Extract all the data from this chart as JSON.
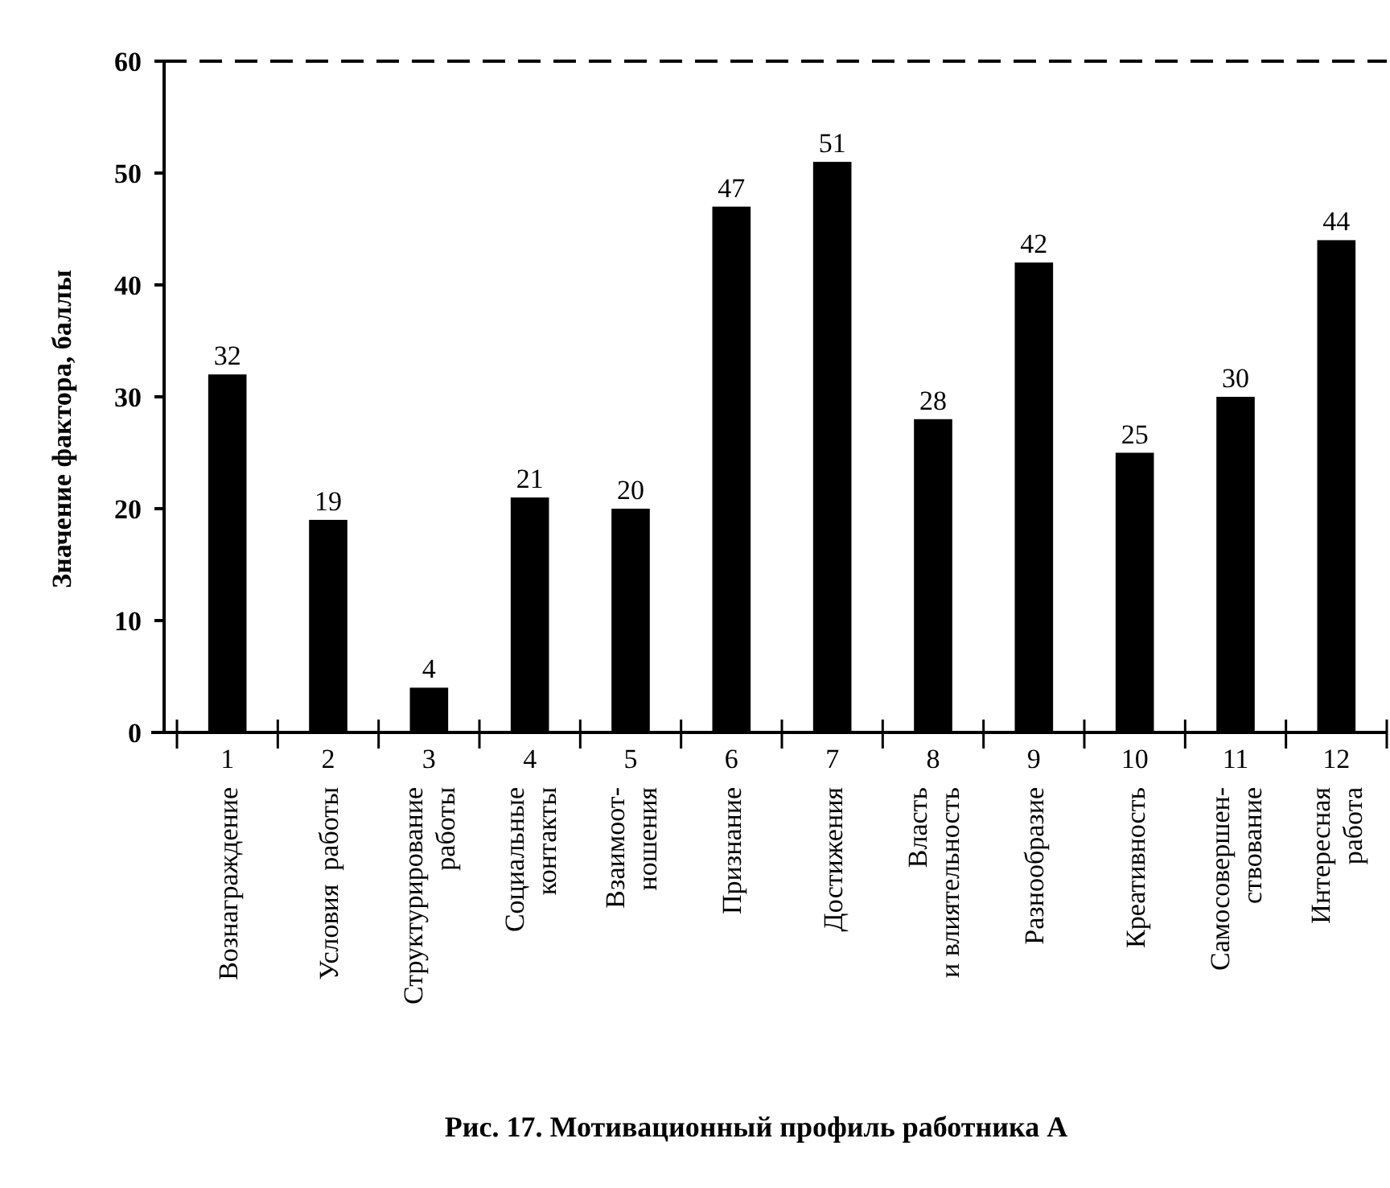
{
  "chart_data": {
    "type": "bar",
    "title": "Рис. 17.  Мотивационный профиль работника A",
    "ylabel": "Значение фактора, баллы",
    "categories": [
      "1\nВознаграждение",
      "2\nУсловия  работы",
      "3\nСтруктурирование\nработы",
      "4\nСоциальные\nконтакты",
      "5\nВзаимоот-\nношения",
      "6\nПризнание",
      "7\nДостижения",
      "8\nВласть\nи влиятельность",
      "9\nРазнообразие",
      "10\nКреативность",
      "11\nСамосовершен-\nствование",
      "12\nИнтересная\nработа"
    ],
    "values": [
      32,
      19,
      4,
      21,
      20,
      47,
      51,
      28,
      42,
      25,
      30,
      44
    ],
    "color": "#000000",
    "ylim": [
      0,
      60
    ],
    "yticks": [
      0,
      10,
      20,
      30,
      40,
      50,
      60
    ],
    "grid": false,
    "data_labels": true,
    "ref_lines": [
      {
        "axis": "y",
        "value": 60,
        "line_style": "dashed",
        "color": "#000000"
      }
    ]
  }
}
